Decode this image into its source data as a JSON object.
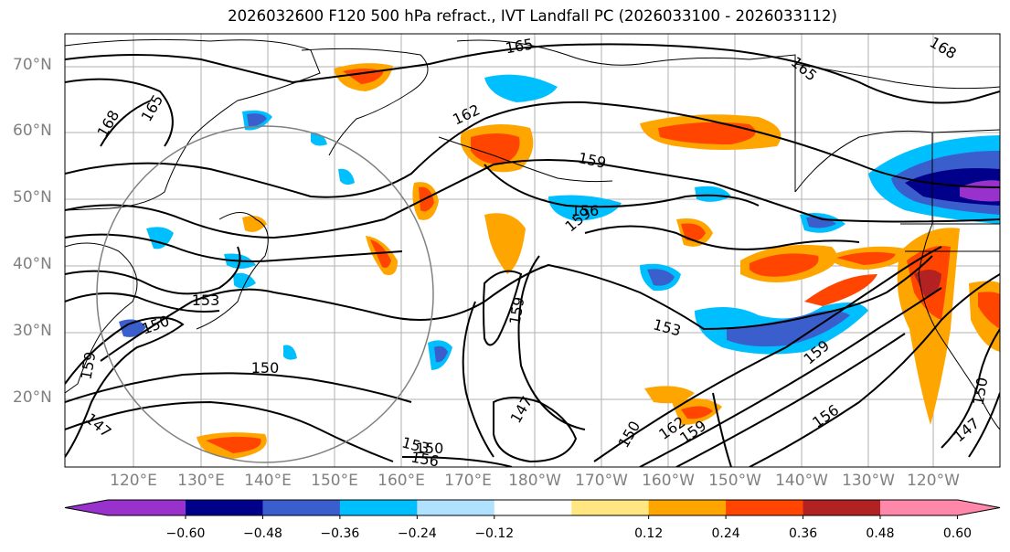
{
  "title": "2026032600 F120 500 hPa refract., IVT Landfall PC (2026033100 - 2026033112)",
  "lat_labels": [
    "70°N",
    "60°N",
    "50°N",
    "40°N",
    "30°N",
    "20°N"
  ],
  "lon_labels": [
    "120°E",
    "130°E",
    "140°E",
    "150°E",
    "160°E",
    "170°E",
    "180°W",
    "170°W",
    "160°W",
    "150°W",
    "140°W",
    "130°W",
    "120°W"
  ],
  "contour_labels": [
    "165",
    "168",
    "165",
    "168",
    "165",
    "162",
    "159",
    "159",
    "159",
    "159",
    "153",
    "153",
    "150",
    "150",
    "159",
    "147",
    "150",
    "147",
    "153",
    "156",
    "150",
    "156",
    "162",
    "159",
    "156",
    "147",
    "150"
  ],
  "colorbar": {
    "ticks": [
      "−0.60",
      "−0.48",
      "−0.36",
      "−0.24",
      "−0.12",
      "0.12",
      "0.24",
      "0.36",
      "0.48",
      "0.60"
    ],
    "colors": [
      "#9932cc",
      "#00008b",
      "#3a5fcd",
      "#00bfff",
      "#b0e2ff",
      "#ffffff",
      "#ffe680",
      "#ffa500",
      "#ff4500",
      "#b22222",
      "#ff88aa"
    ]
  }
}
